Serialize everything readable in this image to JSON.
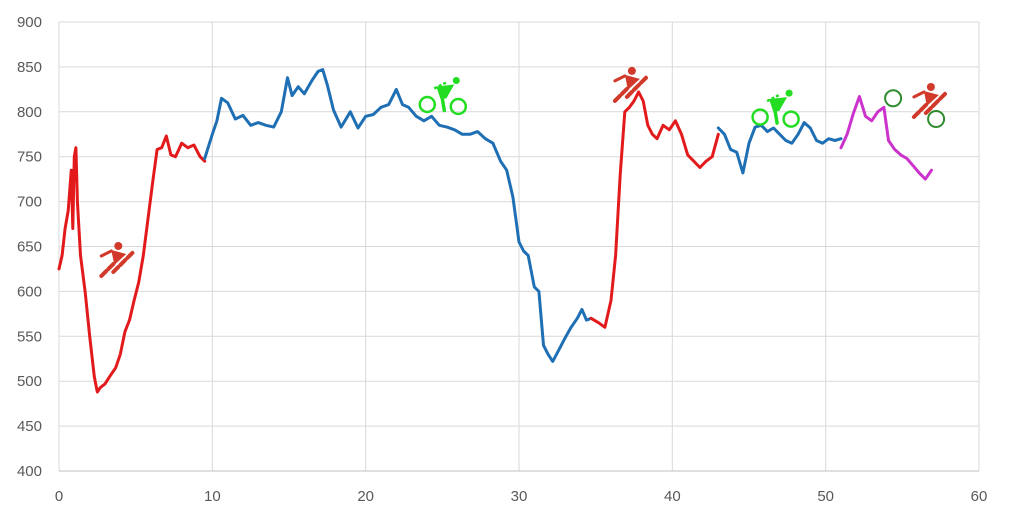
{
  "chart_data": {
    "type": "line",
    "title": "",
    "xlabel": "",
    "ylabel": "",
    "xlim": [
      0,
      60
    ],
    "ylim": [
      400,
      900
    ],
    "x_ticks": [
      0,
      10,
      20,
      30,
      40,
      50,
      60
    ],
    "y_ticks": [
      400,
      450,
      500,
      550,
      600,
      650,
      700,
      750,
      800,
      850,
      900
    ],
    "grid": true,
    "legend": "none",
    "series": [
      {
        "color": "#e31a1c",
        "points": [
          [
            0,
            625
          ],
          [
            0.2,
            640
          ],
          [
            0.4,
            670
          ],
          [
            0.6,
            690
          ],
          [
            0.8,
            735
          ],
          [
            0.9,
            670
          ],
          [
            1.0,
            750
          ],
          [
            1.1,
            760
          ],
          [
            1.2,
            700
          ],
          [
            1.4,
            640
          ],
          [
            1.7,
            600
          ],
          [
            2.0,
            550
          ],
          [
            2.3,
            505
          ],
          [
            2.5,
            488
          ],
          [
            2.7,
            493
          ],
          [
            3.0,
            497
          ],
          [
            3.3,
            505
          ],
          [
            3.7,
            515
          ],
          [
            4.0,
            530
          ],
          [
            4.3,
            555
          ],
          [
            4.6,
            568
          ],
          [
            4.9,
            590
          ],
          [
            5.2,
            610
          ],
          [
            5.5,
            640
          ],
          [
            5.8,
            680
          ],
          [
            6.1,
            720
          ],
          [
            6.4,
            758
          ],
          [
            6.7,
            760
          ],
          [
            7.0,
            773
          ],
          [
            7.3,
            752
          ],
          [
            7.6,
            750
          ],
          [
            8.0,
            765
          ],
          [
            8.4,
            760
          ],
          [
            8.8,
            763
          ],
          [
            9.2,
            750
          ],
          [
            9.5,
            745
          ]
        ]
      },
      {
        "color": "#1f6fb4",
        "points": [
          [
            9.5,
            748
          ],
          [
            10.0,
            775
          ],
          [
            10.3,
            790
          ],
          [
            10.6,
            815
          ],
          [
            11.0,
            810
          ],
          [
            11.5,
            792
          ],
          [
            12.0,
            796
          ],
          [
            12.5,
            785
          ],
          [
            13.0,
            788
          ],
          [
            13.5,
            785
          ],
          [
            14.0,
            783
          ],
          [
            14.5,
            800
          ],
          [
            14.9,
            838
          ],
          [
            15.2,
            818
          ],
          [
            15.6,
            828
          ],
          [
            16.0,
            820
          ],
          [
            16.5,
            835
          ],
          [
            16.9,
            845
          ],
          [
            17.2,
            847
          ],
          [
            17.5,
            830
          ],
          [
            17.9,
            802
          ],
          [
            18.4,
            783
          ],
          [
            19.0,
            800
          ],
          [
            19.5,
            782
          ],
          [
            20.0,
            795
          ],
          [
            20.5,
            797
          ],
          [
            21.0,
            805
          ],
          [
            21.5,
            808
          ],
          [
            22.0,
            825
          ],
          [
            22.4,
            808
          ],
          [
            22.8,
            805
          ],
          [
            23.3,
            795
          ],
          [
            23.8,
            790
          ],
          [
            24.3,
            795
          ],
          [
            24.8,
            785
          ],
          [
            25.3,
            783
          ],
          [
            25.8,
            780
          ],
          [
            26.3,
            775
          ],
          [
            26.8,
            775
          ],
          [
            27.3,
            778
          ],
          [
            27.8,
            770
          ],
          [
            28.3,
            765
          ],
          [
            28.8,
            745
          ],
          [
            29.2,
            735
          ],
          [
            29.6,
            705
          ],
          [
            30.0,
            655
          ],
          [
            30.3,
            645
          ],
          [
            30.6,
            640
          ],
          [
            31.0,
            605
          ],
          [
            31.3,
            600
          ],
          [
            31.6,
            540
          ],
          [
            31.9,
            530
          ],
          [
            32.2,
            522
          ],
          [
            32.6,
            535
          ],
          [
            33.0,
            548
          ],
          [
            33.4,
            560
          ],
          [
            33.8,
            570
          ],
          [
            34.1,
            580
          ],
          [
            34.4,
            568
          ],
          [
            34.7,
            570
          ]
        ]
      },
      {
        "color": "#e31a1c",
        "points": [
          [
            34.7,
            570
          ],
          [
            35.2,
            565
          ],
          [
            35.6,
            560
          ],
          [
            36.0,
            590
          ],
          [
            36.3,
            640
          ],
          [
            36.6,
            730
          ],
          [
            36.9,
            800
          ],
          [
            37.2,
            805
          ],
          [
            37.5,
            812
          ],
          [
            37.8,
            822
          ],
          [
            38.1,
            812
          ],
          [
            38.4,
            785
          ],
          [
            38.7,
            775
          ],
          [
            39.0,
            770
          ],
          [
            39.4,
            785
          ],
          [
            39.8,
            780
          ],
          [
            40.2,
            790
          ],
          [
            40.6,
            775
          ],
          [
            41.0,
            752
          ],
          [
            41.4,
            745
          ],
          [
            41.8,
            738
          ],
          [
            42.2,
            745
          ],
          [
            42.6,
            750
          ],
          [
            43.0,
            775
          ]
        ]
      },
      {
        "color": "#1f6fb4",
        "points": [
          [
            43.0,
            782
          ],
          [
            43.4,
            775
          ],
          [
            43.8,
            758
          ],
          [
            44.2,
            755
          ],
          [
            44.6,
            732
          ],
          [
            45.0,
            765
          ],
          [
            45.4,
            783
          ],
          [
            45.8,
            785
          ],
          [
            46.2,
            778
          ],
          [
            46.6,
            782
          ],
          [
            47.0,
            775
          ],
          [
            47.4,
            768
          ],
          [
            47.8,
            765
          ],
          [
            48.2,
            775
          ],
          [
            48.6,
            788
          ],
          [
            49.0,
            782
          ],
          [
            49.4,
            768
          ],
          [
            49.8,
            765
          ],
          [
            50.2,
            770
          ],
          [
            50.6,
            768
          ],
          [
            51.0,
            770
          ]
        ]
      },
      {
        "color": "#cc33cc",
        "points": [
          [
            51.0,
            760
          ],
          [
            51.4,
            775
          ],
          [
            51.8,
            798
          ],
          [
            52.2,
            817
          ],
          [
            52.6,
            795
          ],
          [
            53.0,
            790
          ],
          [
            53.4,
            800
          ],
          [
            53.8,
            805
          ],
          [
            54.1,
            768
          ],
          [
            54.5,
            758
          ],
          [
            54.9,
            752
          ],
          [
            55.3,
            748
          ],
          [
            55.7,
            740
          ],
          [
            56.1,
            732
          ],
          [
            56.5,
            725
          ],
          [
            56.9,
            735
          ]
        ]
      }
    ],
    "markers": [
      {
        "icon": "runner-icon",
        "color": "#d13a2a",
        "x": 3.8,
        "y": 635
      },
      {
        "icon": "cyclist-icon",
        "color": "#22dd22",
        "x": 25.0,
        "y": 817
      },
      {
        "icon": "runner-icon",
        "color": "#d13a2a",
        "x": 37.3,
        "y": 830
      },
      {
        "icon": "cyclist-icon",
        "color": "#22dd22",
        "x": 46.7,
        "y": 803
      },
      {
        "icon": "runner-icon",
        "color": "#d13a2a",
        "x": 56.8,
        "y": 812
      },
      {
        "icon": "transition-circle-icon",
        "color": "#2e8b2e",
        "x": 54.4,
        "y": 815
      },
      {
        "icon": "transition-circle-icon",
        "color": "#2e8b2e",
        "x": 57.2,
        "y": 792
      }
    ],
    "colors": {
      "run": "#e31a1c",
      "bike": "#1f6fb4",
      "finish": "#cc33cc",
      "cyclist_icon": "#22dd22",
      "runner_icon": "#d13a2a",
      "grid": "#d9d9d9",
      "tick_text": "#595959"
    }
  }
}
